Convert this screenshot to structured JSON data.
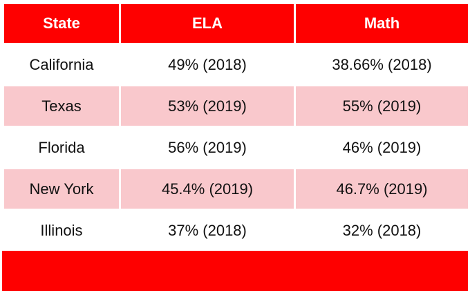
{
  "table": {
    "headers": [
      "State",
      "ELA",
      "Math"
    ],
    "rows": [
      [
        "California",
        "49% (2018)",
        "38.66% (2018)"
      ],
      [
        "Texas",
        "53% (2019)",
        "55% (2019)"
      ],
      [
        "Florida",
        "56% (2019)",
        "46% (2019)"
      ],
      [
        "New York",
        "45.4% (2019)",
        "46.7% (2019)"
      ],
      [
        "Illinois",
        "37% (2018)",
        "32% (2018)"
      ]
    ]
  },
  "colors": {
    "header_bg": "#fe0000",
    "header_text": "#ffffff",
    "band_pink": "#f9c8cc",
    "band_white": "#ffffff",
    "footer_bg": "#fe0000"
  }
}
